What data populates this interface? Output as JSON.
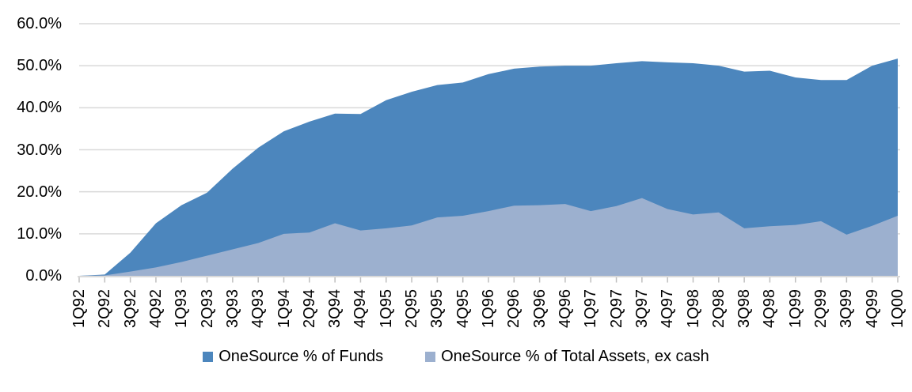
{
  "chart_data": {
    "type": "area",
    "title": "",
    "categories": [
      "1Q92",
      "2Q92",
      "3Q92",
      "4Q92",
      "1Q93",
      "2Q93",
      "3Q93",
      "4Q93",
      "1Q94",
      "2Q94",
      "3Q94",
      "4Q94",
      "1Q95",
      "2Q95",
      "3Q95",
      "4Q95",
      "1Q96",
      "2Q96",
      "3Q96",
      "4Q96",
      "1Q97",
      "2Q97",
      "3Q97",
      "4Q97",
      "1Q98",
      "2Q98",
      "3Q98",
      "4Q98",
      "1Q99",
      "2Q99",
      "3Q99",
      "4Q99",
      "1Q00"
    ],
    "series": [
      {
        "name": "OneSource % of Funds",
        "color": "#4C86BD",
        "values": [
          0.0,
          0.3,
          5.5,
          12.5,
          16.8,
          19.8,
          25.5,
          30.5,
          34.4,
          36.7,
          38.6,
          38.5,
          41.8,
          43.8,
          45.4,
          46.0,
          48.0,
          49.3,
          49.8,
          50.0,
          50.0,
          50.6,
          51.1,
          50.8,
          50.6,
          50.0,
          48.6,
          48.8,
          47.2,
          46.6,
          46.6,
          50.0,
          51.7
        ]
      },
      {
        "name": "OneSource % of Total Assets, ex cash",
        "color": "#9CB0CF",
        "values": [
          0.0,
          0.1,
          1.0,
          2.0,
          3.3,
          4.8,
          6.3,
          7.8,
          10.0,
          10.3,
          12.5,
          10.8,
          11.3,
          12.0,
          13.9,
          14.3,
          15.4,
          16.7,
          16.8,
          17.1,
          15.4,
          16.6,
          18.5,
          15.9,
          14.6,
          15.1,
          11.3,
          11.8,
          12.1,
          13.0,
          9.8,
          11.9,
          14.3
        ]
      }
    ],
    "y_ticks": [
      "0.0%",
      "10.0%",
      "20.0%",
      "30.0%",
      "40.0%",
      "50.0%",
      "60.0%"
    ],
    "ylim": [
      0,
      60
    ],
    "y_tick_step": 10,
    "xlabel": "",
    "ylabel": "",
    "grid": true,
    "legend_position": "bottom",
    "grid_color": "#D9D9D9",
    "tick_color": "#BFBFBF"
  }
}
